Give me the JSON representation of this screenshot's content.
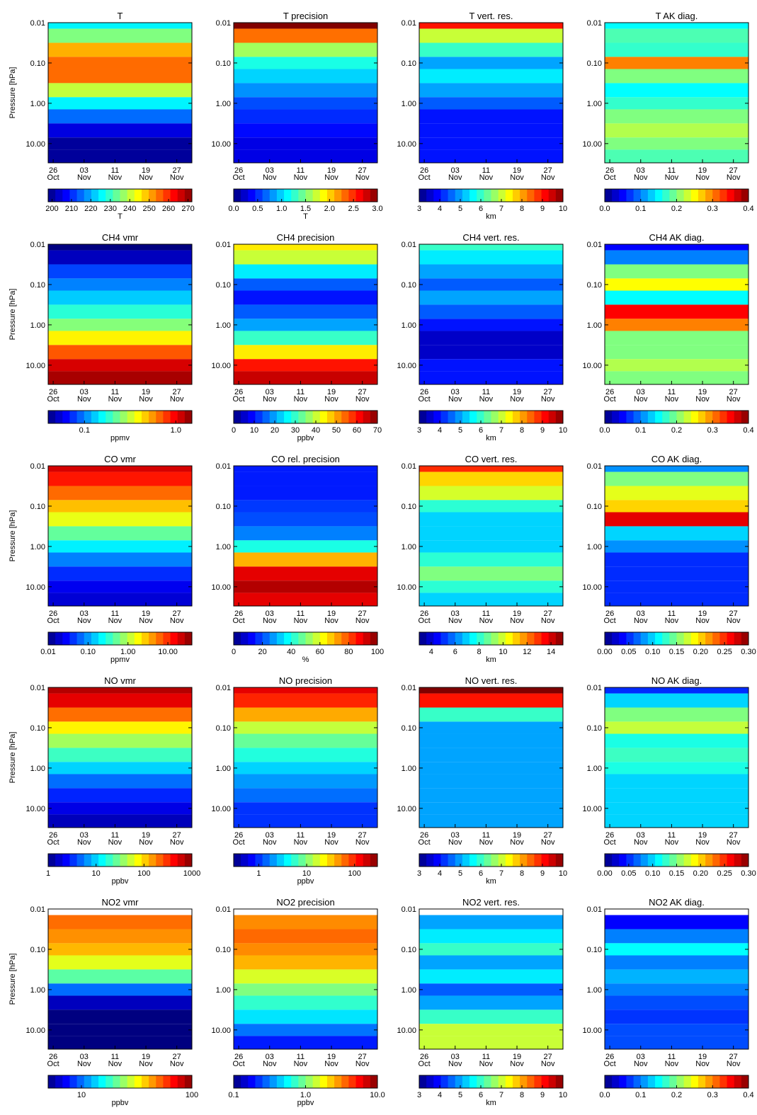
{
  "axes": {
    "ylabel": "Pressure [hPa]",
    "ylim": [
      0.01,
      30
    ],
    "yticks": [
      {
        "value": 0.01,
        "label": "0.01"
      },
      {
        "value": 0.1,
        "label": "0.10"
      },
      {
        "value": 1,
        "label": "1.00"
      },
      {
        "value": 10,
        "label": "10.00"
      }
    ],
    "xticks": [
      {
        "day": "26",
        "month": "Oct"
      },
      {
        "day": "03",
        "month": "Nov"
      },
      {
        "day": "11",
        "month": "Nov"
      },
      {
        "day": "19",
        "month": "Nov"
      },
      {
        "day": "27",
        "month": "Nov"
      }
    ],
    "levels": [
      0.01,
      0.02,
      0.05,
      0.1,
      0.2,
      0.5,
      1,
      2,
      5,
      10,
      20
    ]
  },
  "chart_data": [
    {
      "type": "heatmap",
      "title": "T",
      "colorbar_label": "T",
      "clim": [
        198,
        272
      ],
      "log": false,
      "cticks": [
        200,
        210,
        220,
        230,
        240,
        250,
        260,
        270
      ],
      "values": [
        225,
        235,
        250,
        255,
        255,
        240,
        225,
        215,
        205,
        200,
        200
      ]
    },
    {
      "type": "heatmap",
      "title": "T precision",
      "colorbar_label": "T",
      "clim": [
        0,
        3
      ],
      "log": false,
      "cticks": [
        {
          "value": 0,
          "label": "0.0"
        },
        0.5,
        {
          "value": 1,
          "label": "1.0"
        },
        1.5,
        {
          "value": 2,
          "label": "2.0"
        },
        2.5,
        {
          "value": 3,
          "label": "3.0"
        }
      ],
      "values": [
        3.0,
        2.3,
        1.6,
        1.2,
        1.0,
        0.8,
        0.6,
        0.5,
        0.4,
        0.3,
        0.3
      ]
    },
    {
      "type": "heatmap",
      "title": "T vert. res.",
      "colorbar_label": "km",
      "clim": [
        3,
        10
      ],
      "log": false,
      "cticks": [
        3,
        4,
        5,
        6,
        7,
        8,
        9,
        10
      ],
      "values": [
        9,
        7,
        6,
        5,
        5.5,
        5,
        4.5,
        4,
        4,
        4,
        4
      ]
    },
    {
      "type": "heatmap",
      "title": "T AK diag.",
      "clim": [
        0,
        0.4
      ],
      "log": false,
      "cticks": [
        {
          "value": 0,
          "label": "0.0"
        },
        0.1,
        0.2,
        0.3,
        0.4
      ],
      "values": [
        0.15,
        0.18,
        0.17,
        0.3,
        0.2,
        0.15,
        0.17,
        0.2,
        0.22,
        0.2,
        0.18
      ]
    },
    {
      "type": "heatmap",
      "title": "CH4 vmr",
      "colorbar_label": "ppmv",
      "clim": [
        0.04,
        1.5
      ],
      "log": true,
      "cticks": [
        0.1,
        {
          "value": 1,
          "label": "1.0"
        }
      ],
      "values": [
        0.04,
        0.05,
        0.08,
        0.1,
        0.13,
        0.18,
        0.25,
        0.4,
        0.7,
        1.1,
        1.3
      ]
    },
    {
      "type": "heatmap",
      "title": "CH4 precision",
      "colorbar_label": "ppbv",
      "clim": [
        0,
        70
      ],
      "log": false,
      "cticks": [
        0,
        10,
        20,
        30,
        40,
        50,
        60,
        70
      ],
      "values": [
        45,
        40,
        25,
        15,
        10,
        15,
        20,
        30,
        45,
        60,
        65
      ]
    },
    {
      "type": "heatmap",
      "title": "CH4 vert. res.",
      "colorbar_label": "km",
      "clim": [
        3,
        10
      ],
      "log": false,
      "cticks": [
        3,
        4,
        5,
        6,
        7,
        8,
        9,
        10
      ],
      "values": [
        6,
        5.5,
        5,
        4.5,
        5,
        4.5,
        4,
        3.5,
        3.5,
        4,
        4
      ]
    },
    {
      "type": "heatmap",
      "title": "CH4 AK diag.",
      "clim": [
        0,
        0.4
      ],
      "log": false,
      "cticks": [
        {
          "value": 0,
          "label": "0.0"
        },
        0.1,
        0.2,
        0.3,
        0.4
      ],
      "values": [
        0.05,
        0.1,
        0.2,
        0.25,
        0.15,
        0.35,
        0.3,
        0.2,
        0.2,
        0.22,
        0.2
      ]
    },
    {
      "type": "heatmap",
      "title": "CO vmr",
      "colorbar_label": "ppmv",
      "clim": [
        0.01,
        40
      ],
      "log": true,
      "cticks": [
        0.01,
        {
          "value": 0.1,
          "label": "0.10"
        },
        {
          "value": 1,
          "label": "1.00"
        },
        {
          "value": 10,
          "label": "10.00"
        }
      ],
      "values": [
        20,
        12,
        6,
        3,
        1.5,
        0.5,
        0.2,
        0.08,
        0.04,
        0.025,
        0.02
      ]
    },
    {
      "type": "heatmap",
      "title": "CO rel. precision",
      "colorbar_label": "%",
      "clim": [
        0,
        100
      ],
      "log": false,
      "cticks": [
        0,
        20,
        40,
        60,
        80,
        100
      ],
      "values": [
        15,
        15,
        15,
        18,
        20,
        25,
        40,
        70,
        90,
        95,
        90
      ]
    },
    {
      "type": "heatmap",
      "title": "CO vert. res.",
      "colorbar_label": "km",
      "clim": [
        3,
        15
      ],
      "log": false,
      "cticks": [
        4,
        6,
        8,
        10,
        12,
        14
      ],
      "values": [
        13,
        11,
        10,
        8,
        7,
        7,
        7,
        8,
        9,
        8,
        7
      ]
    },
    {
      "type": "heatmap",
      "title": "CO AK diag.",
      "clim": [
        0,
        0.3
      ],
      "log": false,
      "cticks": [
        {
          "value": 0,
          "label": "0.00"
        },
        0.05,
        {
          "value": 0.1,
          "label": "0.10"
        },
        0.15,
        {
          "value": 0.2,
          "label": "0.20"
        },
        0.25,
        {
          "value": 0.3,
          "label": "0.30"
        }
      ],
      "values": [
        0.08,
        0.15,
        0.18,
        0.2,
        0.27,
        0.1,
        0.08,
        0.05,
        0.05,
        0.05,
        0.05
      ]
    },
    {
      "type": "heatmap",
      "title": "NO vmr",
      "colorbar_label": "ppbv",
      "clim": [
        1,
        1000
      ],
      "log": true,
      "cticks": [
        1,
        10,
        100,
        1000
      ],
      "values": [
        700,
        500,
        200,
        80,
        40,
        20,
        10,
        5,
        3,
        2,
        1.5
      ]
    },
    {
      "type": "heatmap",
      "title": "NO precision",
      "colorbar_label": "ppbv",
      "clim": [
        0.3,
        300
      ],
      "log": true,
      "cticks": [
        1,
        10,
        100
      ],
      "values": [
        150,
        100,
        40,
        15,
        8,
        5,
        3,
        2,
        1.5,
        1,
        1
      ]
    },
    {
      "type": "heatmap",
      "title": "NO vert. res.",
      "colorbar_label": "km",
      "clim": [
        3,
        10
      ],
      "log": false,
      "cticks": [
        3,
        4,
        5,
        6,
        7,
        8,
        9,
        10
      ],
      "values": [
        10,
        9,
        6,
        5,
        5,
        5,
        5,
        5,
        5,
        5,
        5
      ]
    },
    {
      "type": "heatmap",
      "title": "NO AK diag.",
      "clim": [
        0,
        0.3
      ],
      "log": false,
      "cticks": [
        {
          "value": 0,
          "label": "0.00"
        },
        0.05,
        {
          "value": 0.1,
          "label": "0.10"
        },
        0.15,
        {
          "value": 0.2,
          "label": "0.20"
        },
        0.25,
        {
          "value": 0.3,
          "label": "0.30"
        }
      ],
      "values": [
        0.05,
        0.1,
        0.15,
        0.17,
        0.12,
        0.13,
        0.12,
        0.1,
        0.1,
        0.1,
        0.1
      ]
    },
    {
      "type": "heatmap",
      "title": "NO2 vmr",
      "colorbar_label": "ppbv",
      "clim": [
        5,
        100
      ],
      "log": true,
      "cticks": [
        10,
        100
      ],
      "values": [
        null,
        50,
        45,
        40,
        30,
        20,
        10,
        6,
        5,
        5,
        5
      ]
    },
    {
      "type": "heatmap",
      "title": "NO2 precision",
      "colorbar_label": "ppbv",
      "clim": [
        0.1,
        10
      ],
      "log": true,
      "cticks": [
        0.1,
        {
          "value": 1,
          "label": "1.0"
        },
        {
          "value": 10,
          "label": "10.0"
        }
      ],
      "values": [
        null,
        3,
        3.5,
        3,
        2.5,
        1.5,
        1,
        0.7,
        0.5,
        0.3,
        0.2
      ]
    },
    {
      "type": "heatmap",
      "title": "NO2 vert. res.",
      "colorbar_label": "km",
      "clim": [
        3,
        10
      ],
      "log": false,
      "cticks": [
        3,
        4,
        5,
        6,
        7,
        8,
        9,
        10
      ],
      "values": [
        null,
        5,
        5.5,
        6,
        5,
        5.5,
        4.5,
        5,
        6,
        7,
        7
      ]
    },
    {
      "type": "heatmap",
      "title": "NO2 AK diag.",
      "clim": [
        0,
        0.4
      ],
      "log": false,
      "cticks": [
        {
          "value": 0,
          "label": "0.0"
        },
        0.1,
        0.2,
        0.3,
        0.4
      ],
      "values": [
        null,
        0.05,
        0.1,
        0.15,
        0.1,
        0.12,
        0.1,
        0.08,
        0.07,
        0.08,
        0.08
      ]
    }
  ]
}
